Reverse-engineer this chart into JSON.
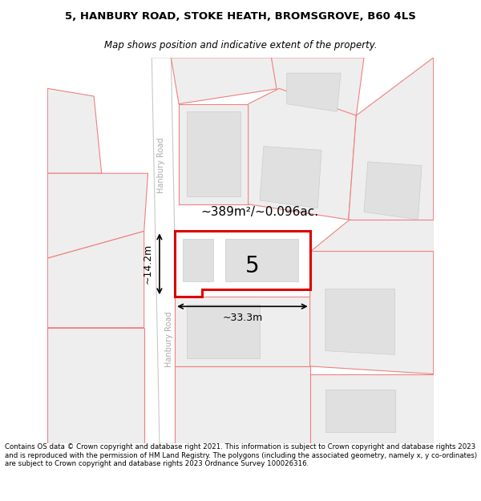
{
  "title_line1": "5, HANBURY ROAD, STOKE HEATH, BROMSGROVE, B60 4LS",
  "title_line2": "Map shows position and indicative extent of the property.",
  "footer_text": "Contains OS data © Crown copyright and database right 2021. This information is subject to Crown copyright and database rights 2023 and is reproduced with the permission of HM Land Registry. The polygons (including the associated geometry, namely x, y co-ordinates) are subject to Crown copyright and database rights 2023 Ordnance Survey 100026316.",
  "bg_color": "#ffffff",
  "map_bg_color": "#ffffff",
  "plot_outline_color": "#dd0000",
  "nearby_outline_color": "#f08080",
  "nearby_fill_color": "#eeeeee",
  "building_fill_color": "#e0e0e0",
  "building_edge_color": "#cccccc",
  "road_edge_color": "#c8c8c8",
  "label_5": "5",
  "area_label": "~389m²/~0.096ac.",
  "width_label": "~33.3m",
  "height_label": "~14.2m",
  "road_label": "Hanbury Road",
  "road_label2": "Hanbury Road"
}
